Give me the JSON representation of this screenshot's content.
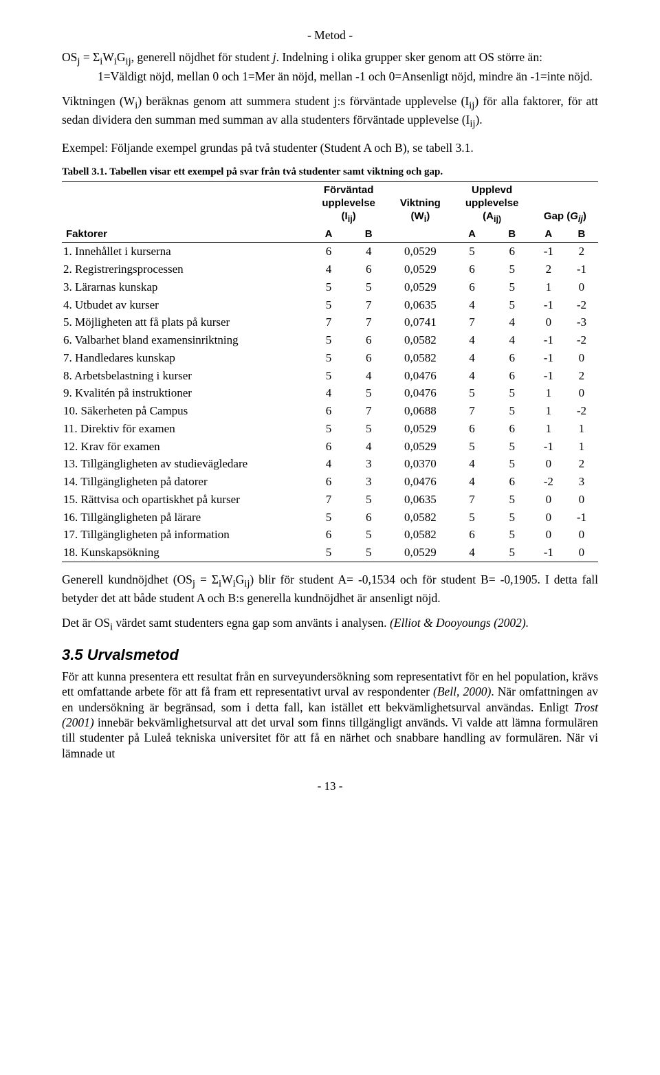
{
  "header_label": "- Metod -",
  "para1_html": "OS<sub>j</sub> = Σ<sub>i</sub>W<sub>i</sub>G<sub>ij</sub>, generell nöjdhet för student <i>j</i>. Indelning i olika grupper sker genom att OS större än:",
  "para1_line2": "1=Väldigt nöjd, mellan 0 och 1=Mer än nöjd, mellan -1 och 0=Ansenligt nöjd, mindre än -1=inte nöjd.",
  "para2_html": "Viktningen (W<sub>i</sub>) beräknas genom att summera student j:s förväntade upplevelse (I<sub>ij</sub>) för alla faktorer, för att sedan dividera den summan med summan av alla studenters förväntade upplevelse (I<sub>ij</sub>).",
  "para3": "Exempel: Följande exempel grundas på två studenter (Student A och B), se tabell 3.1.",
  "table_caption": "Tabell 3.1. Tabellen visar ett exempel på svar från två studenter samt viktning och gap.",
  "table": {
    "head": {
      "col_forvantad_line1": "Förväntad",
      "col_forvantad_line2": "upplevelse",
      "col_forvantad_line3_html": "(I<sub>ij</sub>)",
      "col_viktning_line1": "Viktning",
      "col_viktning_line2_html": "(W<sub>i</sub>)",
      "col_upplevd_line1": "Upplevd",
      "col_upplevd_line2": "upplevelse",
      "col_upplevd_line3_html": "(A<sub>ij)</sub>",
      "col_gap_html": "Gap (<i>G<sub>ij</sub></i>)",
      "faktorer": "Faktorer",
      "A": "A",
      "B": "B"
    },
    "rows": [
      {
        "label": "1.  Innehållet i kurserna",
        "fa": "6",
        "fb": "4",
        "w": "0,0529",
        "ua": "5",
        "ub": "6",
        "ga": "-1",
        "gb": "2"
      },
      {
        "label": "2.  Registreringsprocessen",
        "fa": "4",
        "fb": "6",
        "w": "0,0529",
        "ua": "6",
        "ub": "5",
        "ga": "2",
        "gb": "-1"
      },
      {
        "label": "3.  Lärarnas kunskap",
        "fa": "5",
        "fb": "5",
        "w": "0,0529",
        "ua": "6",
        "ub": "5",
        "ga": "1",
        "gb": "0"
      },
      {
        "label": "4.  Utbudet av kurser",
        "fa": "5",
        "fb": "7",
        "w": "0,0635",
        "ua": "4",
        "ub": "5",
        "ga": "-1",
        "gb": "-2"
      },
      {
        "label": "5.  Möjligheten att få plats på kurser",
        "fa": "7",
        "fb": "7",
        "w": "0,0741",
        "ua": "7",
        "ub": "4",
        "ga": "0",
        "gb": "-3"
      },
      {
        "label": "6.  Valbarhet bland examensinriktning",
        "fa": "5",
        "fb": "6",
        "w": "0,0582",
        "ua": "4",
        "ub": "4",
        "ga": "-1",
        "gb": "-2"
      },
      {
        "label": "7.  Handledares kunskap",
        "fa": "5",
        "fb": "6",
        "w": "0,0582",
        "ua": "4",
        "ub": "6",
        "ga": "-1",
        "gb": "0"
      },
      {
        "label": "8.  Arbetsbelastning i kurser",
        "fa": "5",
        "fb": "4",
        "w": "0,0476",
        "ua": "4",
        "ub": "6",
        "ga": "-1",
        "gb": "2"
      },
      {
        "label": "9.  Kvalitén på instruktioner",
        "fa": "4",
        "fb": "5",
        "w": "0,0476",
        "ua": "5",
        "ub": "5",
        "ga": "1",
        "gb": "0"
      },
      {
        "label": "10. Säkerheten på Campus",
        "fa": "6",
        "fb": "7",
        "w": "0,0688",
        "ua": "7",
        "ub": "5",
        "ga": "1",
        "gb": "-2"
      },
      {
        "label": "11. Direktiv för examen",
        "fa": "5",
        "fb": "5",
        "w": "0,0529",
        "ua": "6",
        "ub": "6",
        "ga": "1",
        "gb": "1"
      },
      {
        "label": "12. Krav för examen",
        "fa": "6",
        "fb": "4",
        "w": "0,0529",
        "ua": "5",
        "ub": "5",
        "ga": "-1",
        "gb": "1"
      },
      {
        "label": "13. Tillgängligheten av studievägledare",
        "fa": "4",
        "fb": "3",
        "w": "0,0370",
        "ua": "4",
        "ub": "5",
        "ga": "0",
        "gb": "2"
      },
      {
        "label": "14. Tillgängligheten på datorer",
        "fa": "6",
        "fb": "3",
        "w": "0,0476",
        "ua": "4",
        "ub": "6",
        "ga": "-2",
        "gb": "3"
      },
      {
        "label": "15. Rättvisa och opartiskhet på kurser",
        "fa": "7",
        "fb": "5",
        "w": "0,0635",
        "ua": "7",
        "ub": "5",
        "ga": "0",
        "gb": "0"
      },
      {
        "label": "16. Tillgängligheten på lärare",
        "fa": "5",
        "fb": "6",
        "w": "0,0582",
        "ua": "5",
        "ub": "5",
        "ga": "0",
        "gb": "-1"
      },
      {
        "label": "17. Tillgängligheten på information",
        "fa": "6",
        "fb": "5",
        "w": "0,0582",
        "ua": "6",
        "ub": "5",
        "ga": "0",
        "gb": "0"
      },
      {
        "label": "18. Kunskapsökning",
        "fa": "5",
        "fb": "5",
        "w": "0,0529",
        "ua": "4",
        "ub": "5",
        "ga": "-1",
        "gb": "0"
      }
    ]
  },
  "para4_html": "Generell kundnöjdhet (OS<sub>j</sub> = Σ<sub>i</sub>W<sub>i</sub>G<sub>ij</sub>) blir för student A= -0,1534 och för student B= -0,1905. I detta fall betyder det att både student A och B:s generella kundnöjdhet är ansenligt nöjd.",
  "para5_html": "Det är OS<sub>i</sub> värdet samt studenters egna gap som använts i analysen. <i>(Elliot &amp; Dooyoungs (2002).</i>",
  "section_heading": "3.5  Urvalsmetod",
  "para6_html": "För att kunna presentera ett resultat från en surveyundersökning som representativt för en hel population, krävs ett omfattande arbete för att få fram ett representativt urval av respondenter <i>(Bell, 2000)</i>. När omfattningen av en undersökning är begränsad, som i detta fall, kan istället ett bekvämlighetsurval användas. Enligt <i>Trost (2001)</i> innebär bekvämlighetsurval att det urval som finns tillgängligt används. Vi valde att lämna formulären till studenter på Luleå tekniska universitet för att få en närhet och snabbare handling av formulären. När vi lämnade ut",
  "page_number": "- 13 -"
}
